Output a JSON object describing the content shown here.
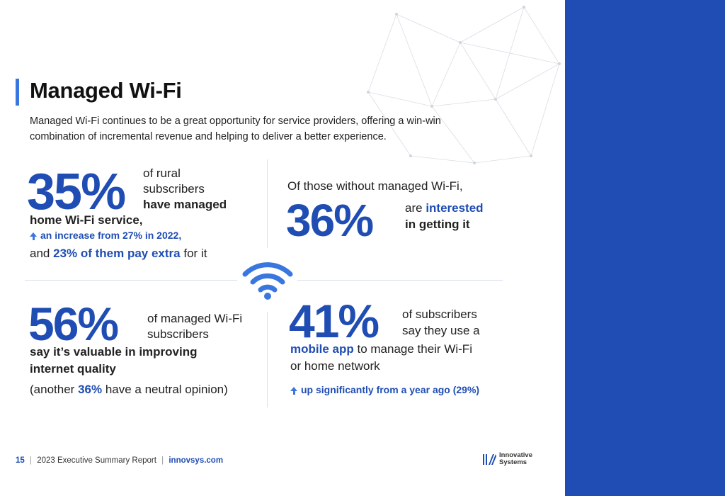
{
  "page": {
    "title": "Managed Wi-Fi",
    "intro": "Managed Wi-Fi continues to be a great opportunity for service providers, offering a win-win combination of incremental revenue and helping to deliver a better experience."
  },
  "stat1": {
    "big": "35%",
    "line1": "of rural",
    "line2": "subscribers",
    "line3_bold": "have managed",
    "line4_bold": "home Wi-Fi service,",
    "increase": "an increase from 27% in 2022,",
    "and": "and",
    "pay_bold": "23% of them pay extra",
    "for_it": "for it"
  },
  "stat2": {
    "lead": "Of those without managed Wi-Fi,",
    "big": "36%",
    "are": "are",
    "interested_bold": "interested",
    "getting_bold": "in getting it"
  },
  "stat3": {
    "big": "56%",
    "line1": "of managed Wi-Fi",
    "line2": "subscribers",
    "bold1": "say it’s valuable in improving",
    "bold2": "internet quality",
    "paren_open": "(another",
    "paren_bold": "36%",
    "paren_close": "have a neutral opinion)"
  },
  "stat4": {
    "big": "41%",
    "line1": "of subscribers",
    "line2": "say they use a",
    "bold": "mobile app",
    "line3_rest": "to manage their Wi-Fi",
    "line4": "or home network",
    "up": "up significantly from a year ago (29%)"
  },
  "footer": {
    "page_num": "15",
    "report": "2023 Executive Summary Report",
    "url": "innovsys.com",
    "sep": "|"
  },
  "logo": {
    "line1": "Innovative",
    "line2": "Systems"
  },
  "icons": [
    "wifi-icon",
    "up-arrow-icon",
    "logo-icon"
  ],
  "colors": {
    "accent_blue": "#1f4db3",
    "light_blue": "#3a76e0",
    "side_panel": "#1f4db3"
  }
}
